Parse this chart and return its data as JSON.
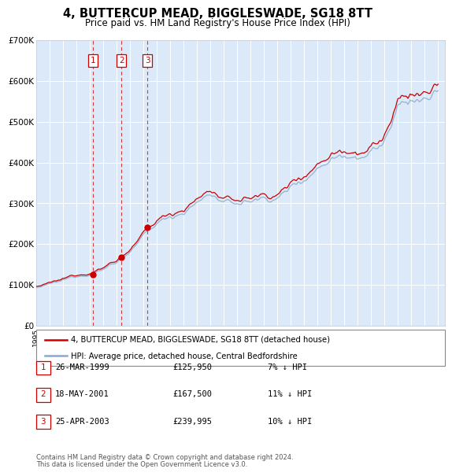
{
  "title": "4, BUTTERCUP MEAD, BIGGLESWADE, SG18 8TT",
  "subtitle": "Price paid vs. HM Land Registry's House Price Index (HPI)",
  "transactions": [
    {
      "num": 1,
      "date": "26-MAR-1999",
      "price": 125950,
      "pct": "7%",
      "dir": "↓"
    },
    {
      "num": 2,
      "date": "18-MAY-2001",
      "price": 167500,
      "pct": "11%",
      "dir": "↓"
    },
    {
      "num": 3,
      "date": "25-APR-2003",
      "price": 239995,
      "pct": "10%",
      "dir": "↓"
    }
  ],
  "legend_property": "4, BUTTERCUP MEAD, BIGGLESWADE, SG18 8TT (detached house)",
  "legend_hpi": "HPI: Average price, detached house, Central Bedfordshire",
  "footer": "Contains HM Land Registry data © Crown copyright and database right 2024.\nThis data is licensed under the Open Government Licence v3.0.",
  "ylim": [
    0,
    700000
  ],
  "yticks": [
    0,
    100000,
    200000,
    300000,
    400000,
    500000,
    600000,
    700000
  ],
  "ytick_labels": [
    "£0",
    "£100K",
    "£200K",
    "£300K",
    "£400K",
    "£500K",
    "£600K",
    "£700K"
  ],
  "xstart_year": 1995,
  "xend_year": 2025,
  "bg_color": "#dce9f8",
  "grid_color": "#ffffff",
  "red_line_color": "#cc0000",
  "blue_line_color": "#88aacc",
  "dashed_line_color": "#cc0000",
  "marker_color": "#cc0000"
}
